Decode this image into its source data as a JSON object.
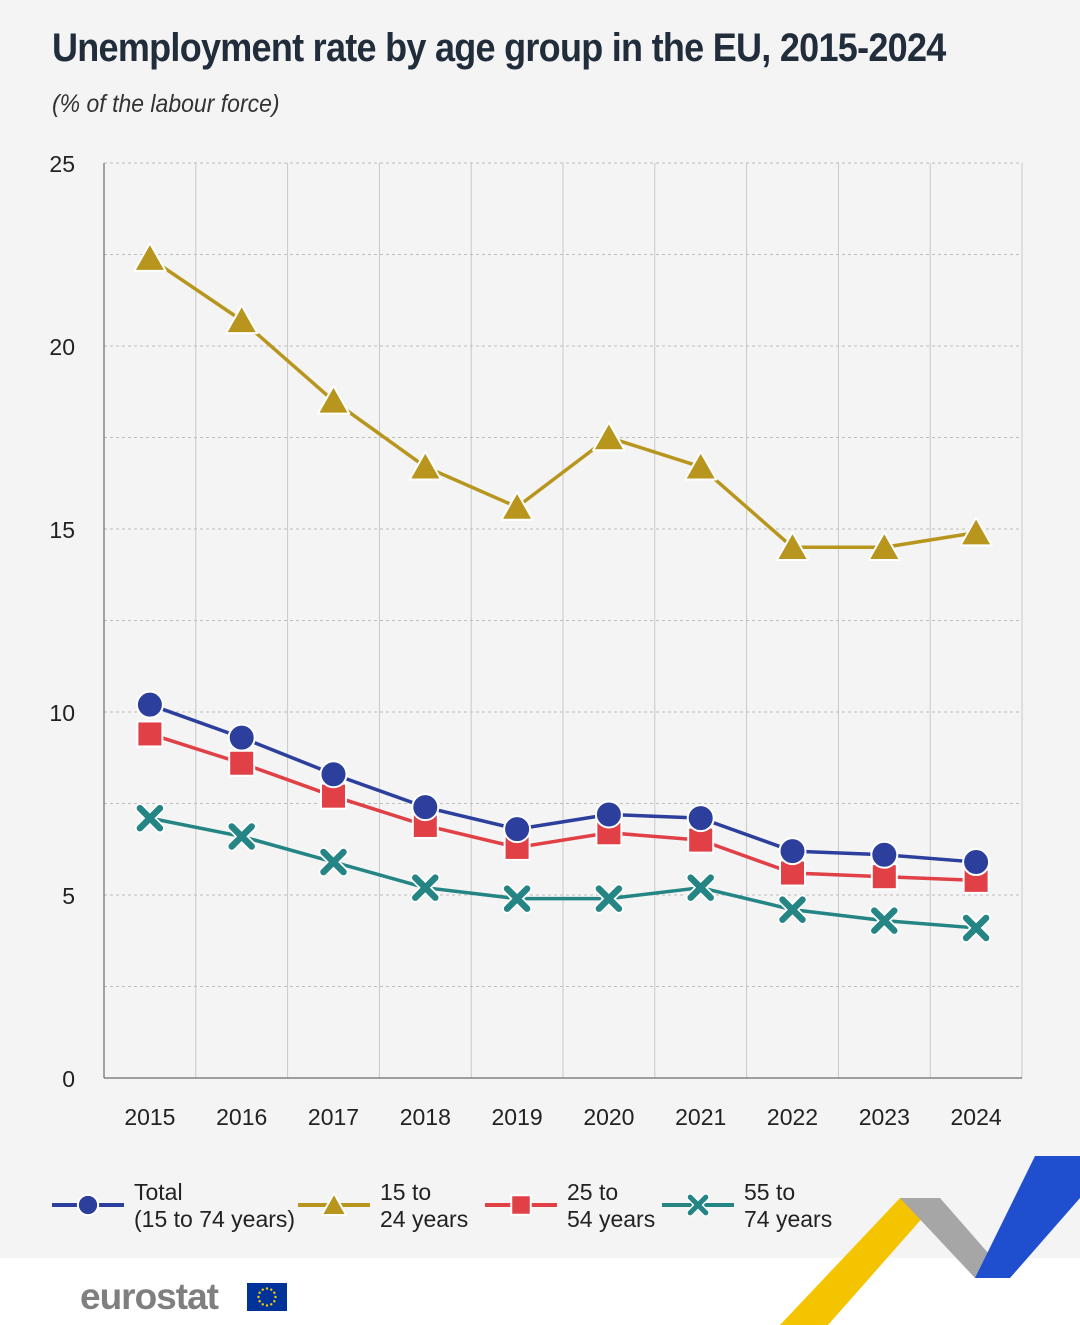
{
  "header": {
    "title": "Unemployment rate by age group in the EU, 2015-2024",
    "subtitle": "(% of the labour force)"
  },
  "chart_data": {
    "type": "line",
    "title": "Unemployment rate by age group in the EU, 2015-2024",
    "subtitle": "(% of the labour force)",
    "xlabel": "",
    "ylabel": "",
    "categories": [
      "2015",
      "2016",
      "2017",
      "2018",
      "2019",
      "2020",
      "2021",
      "2022",
      "2023",
      "2024"
    ],
    "ylim": [
      0,
      25
    ],
    "yticks": [
      0,
      5,
      10,
      15,
      20,
      25
    ],
    "grid": true,
    "legend_position": "bottom",
    "series": [
      {
        "name": "15 to 24 years",
        "legend_lines": [
          "15 to",
          "24 years"
        ],
        "marker": "triangle",
        "color": "#b8961e",
        "values": [
          22.4,
          20.7,
          18.5,
          16.7,
          15.6,
          17.5,
          16.7,
          14.5,
          14.5,
          14.9
        ]
      },
      {
        "name": "Total (15 to 74 years)",
        "legend_lines": [
          "Total",
          "(15 to 74 years)"
        ],
        "marker": "circle",
        "color": "#2c3f9c",
        "values": [
          10.2,
          9.3,
          8.3,
          7.4,
          6.8,
          7.2,
          7.1,
          6.2,
          6.1,
          5.9
        ]
      },
      {
        "name": "25 to 54 years",
        "legend_lines": [
          "25 to",
          "54 years"
        ],
        "marker": "square",
        "color": "#e04046",
        "values": [
          9.4,
          8.6,
          7.7,
          6.9,
          6.3,
          6.7,
          6.5,
          5.6,
          5.5,
          5.4
        ]
      },
      {
        "name": "55 to 74 years",
        "legend_lines": [
          "55 to",
          "74 years"
        ],
        "marker": "cross",
        "color": "#258585",
        "values": [
          7.1,
          6.6,
          5.9,
          5.2,
          4.9,
          4.9,
          5.2,
          4.6,
          4.3,
          4.1
        ]
      }
    ],
    "legend_order": [
      1,
      0,
      2,
      3
    ]
  },
  "branding": {
    "logo_text": "eurostat",
    "logo_color": "#7f7f7f",
    "flag_blue": "#003399",
    "flag_star": "#ffcc00"
  }
}
